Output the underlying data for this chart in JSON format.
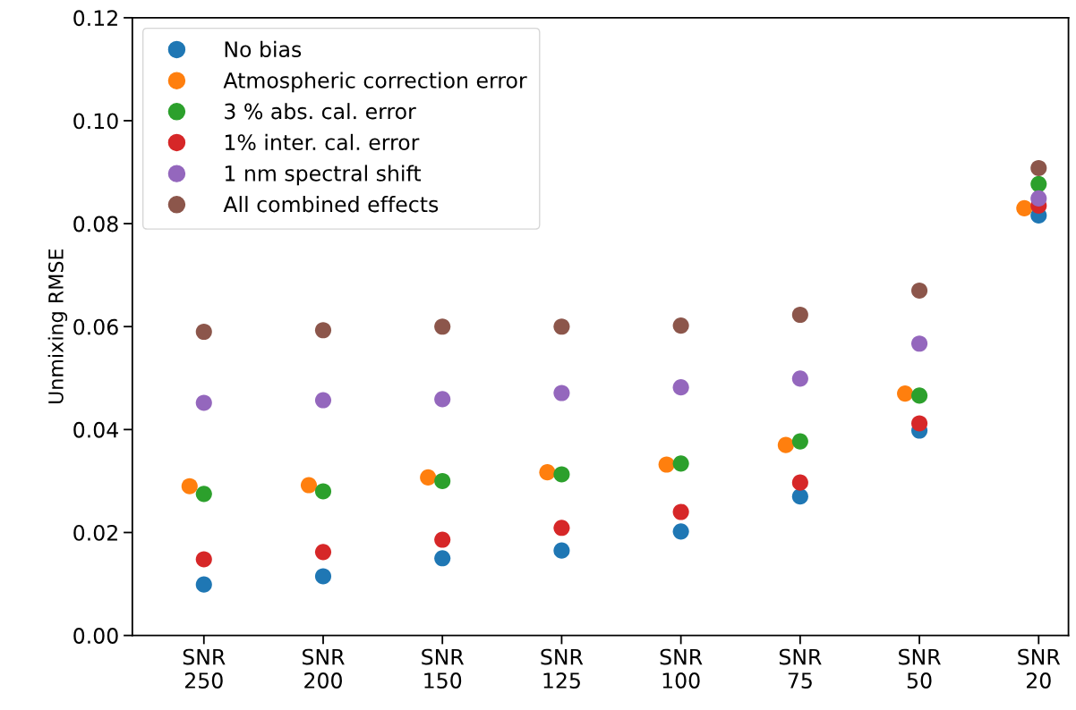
{
  "chart_data": {
    "type": "scatter",
    "ylabel": "Unmixing RMSE",
    "marker": "circle",
    "legend": "top left",
    "grid": false,
    "categories": [
      "SNR\n250",
      "SNR\n200",
      "SNR\n150",
      "SNR\n125",
      "SNR\n100",
      "SNR\n75",
      "SNR\n50",
      "SNR\n20"
    ],
    "ylim": [
      0,
      0.12
    ],
    "yticks": [
      {
        "value": 0,
        "label": "0.00"
      },
      {
        "value": 0.02,
        "label": "0.02"
      },
      {
        "value": 0.04,
        "label": "0.04"
      },
      {
        "value": 0.06,
        "label": "0.06"
      },
      {
        "value": 0.08,
        "label": "0.08"
      },
      {
        "value": 0.1,
        "label": "0.10"
      },
      {
        "value": 0.12,
        "label": "0.12"
      }
    ],
    "series": [
      {
        "name": "No bias",
        "color": "#1f77b4",
        "values": [
          0.0099,
          0.0115,
          0.015,
          0.0165,
          0.0202,
          0.027,
          0.0398,
          0.0816
        ]
      },
      {
        "name": "Atmospheric correction error",
        "color": "#ff7f0e",
        "values": [
          0.029,
          0.0292,
          0.0307,
          0.0317,
          0.0332,
          0.037,
          0.047,
          0.083
        ]
      },
      {
        "name": "3 % abs. cal. error",
        "color": "#2ca02c",
        "values": [
          0.0275,
          0.028,
          0.03,
          0.0313,
          0.0334,
          0.0377,
          0.0466,
          0.0877
        ]
      },
      {
        "name": "1% inter. cal. error",
        "color": "#d62728",
        "values": [
          0.0148,
          0.0162,
          0.0186,
          0.0209,
          0.024,
          0.0297,
          0.0412,
          0.0835
        ]
      },
      {
        "name": "1 nm spectral shift",
        "color": "#9467bd",
        "values": [
          0.0452,
          0.0457,
          0.0459,
          0.0471,
          0.0482,
          0.0499,
          0.0567,
          0.0849
        ]
      },
      {
        "name": "All combined effects",
        "color": "#8c564b",
        "values": [
          0.059,
          0.0593,
          0.06,
          0.06,
          0.0602,
          0.0623,
          0.067,
          0.0908
        ]
      }
    ]
  }
}
